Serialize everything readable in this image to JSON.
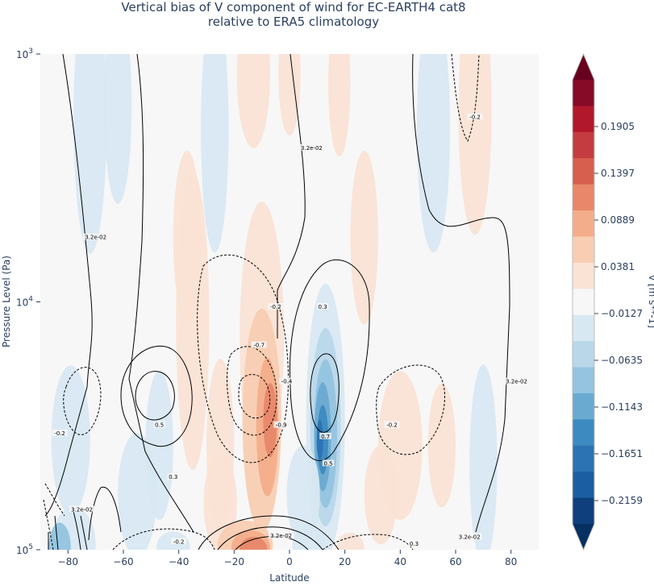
{
  "chart_data": {
    "type": "heatmap",
    "title": "Vertical bias of V component of wind for EC-EARTH4 cat8",
    "subtitle": "relative to ERA5 climatology",
    "xlabel": "Latitude",
    "ylabel": "Pressure Level (Pa)",
    "x_ticks": [
      "−80",
      "−60",
      "−40",
      "−20",
      "0",
      "20",
      "40",
      "60",
      "80"
    ],
    "x_tick_values": [
      -80,
      -60,
      -40,
      -20,
      0,
      20,
      40,
      60,
      80
    ],
    "xlim": [
      -90,
      90
    ],
    "y_scale": "log",
    "ylim": [
      1000,
      100000
    ],
    "y_ticks": [
      {
        "base": "10",
        "exp": "3",
        "value": 1000
      },
      {
        "base": "10",
        "exp": "4",
        "value": 10000
      },
      {
        "base": "10",
        "exp": "5",
        "value": 100000
      }
    ],
    "colorbar": {
      "label": "v [m s**-1]",
      "range": [
        -0.2413,
        0.2413
      ],
      "levels": 19,
      "tick_labels": [
        "0.1905",
        "0.1397",
        "0.0889",
        "0.0381",
        "−0.0127",
        "−0.0635",
        "−0.1143",
        "−0.1651",
        "−0.2159"
      ],
      "tick_values": [
        0.1905,
        0.1397,
        0.0889,
        0.0381,
        -0.0127,
        -0.0635,
        -0.1143,
        -0.1651,
        -0.2159
      ],
      "colors": [
        "#053061",
        "#0f3f7c",
        "#1c5ea2",
        "#2b73b3",
        "#3d8ac0",
        "#6aaad1",
        "#94c4df",
        "#bad7ea",
        "#d8e8f2",
        "#f7f7f7",
        "#fae3d5",
        "#f8cdb2",
        "#f4ad8a",
        "#e8876a",
        "#d6604d",
        "#c43c3f",
        "#b1182b",
        "#850b27",
        "#67001f"
      ]
    },
    "contour_labels": [
      {
        "text": "3.2e-02",
        "lon": -70,
        "p": 5500
      },
      {
        "text": "3.2e-02",
        "lon": 8,
        "p": 2400
      },
      {
        "text": "-0.2",
        "lon": 67,
        "p": 1800
      },
      {
        "text": "-0.2",
        "lon": -5,
        "p": 10500
      },
      {
        "text": "-0.7",
        "lon": -11,
        "p": 15000
      },
      {
        "text": "-0.4",
        "lon": -1,
        "p": 21000
      },
      {
        "text": "0.3",
        "lon": 12,
        "p": 10500
      },
      {
        "text": "3.2e-02",
        "lon": 82,
        "p": 21000
      },
      {
        "text": "-0.2",
        "lon": -83,
        "p": 34000
      },
      {
        "text": "0.5",
        "lon": -47,
        "p": 31500
      },
      {
        "text": "-0.9",
        "lon": -3,
        "p": 31500
      },
      {
        "text": "0.7",
        "lon": 13,
        "p": 35000
      },
      {
        "text": "-0.2",
        "lon": 37,
        "p": 31500
      },
      {
        "text": "0.5",
        "lon": 14,
        "p": 45000
      },
      {
        "text": "0.3",
        "lon": -42,
        "p": 51000
      },
      {
        "text": "3.2e-02",
        "lon": -75,
        "p": 69000
      },
      {
        "text": "3.2e-02",
        "lon": -3,
        "p": 88000
      },
      {
        "text": "3.2e-02",
        "lon": 65,
        "p": 89000
      },
      {
        "text": "-0.2",
        "lon": -40,
        "p": 93000
      },
      {
        "text": "0.3",
        "lon": 45,
        "p": 95000
      }
    ],
    "grid": false
  }
}
